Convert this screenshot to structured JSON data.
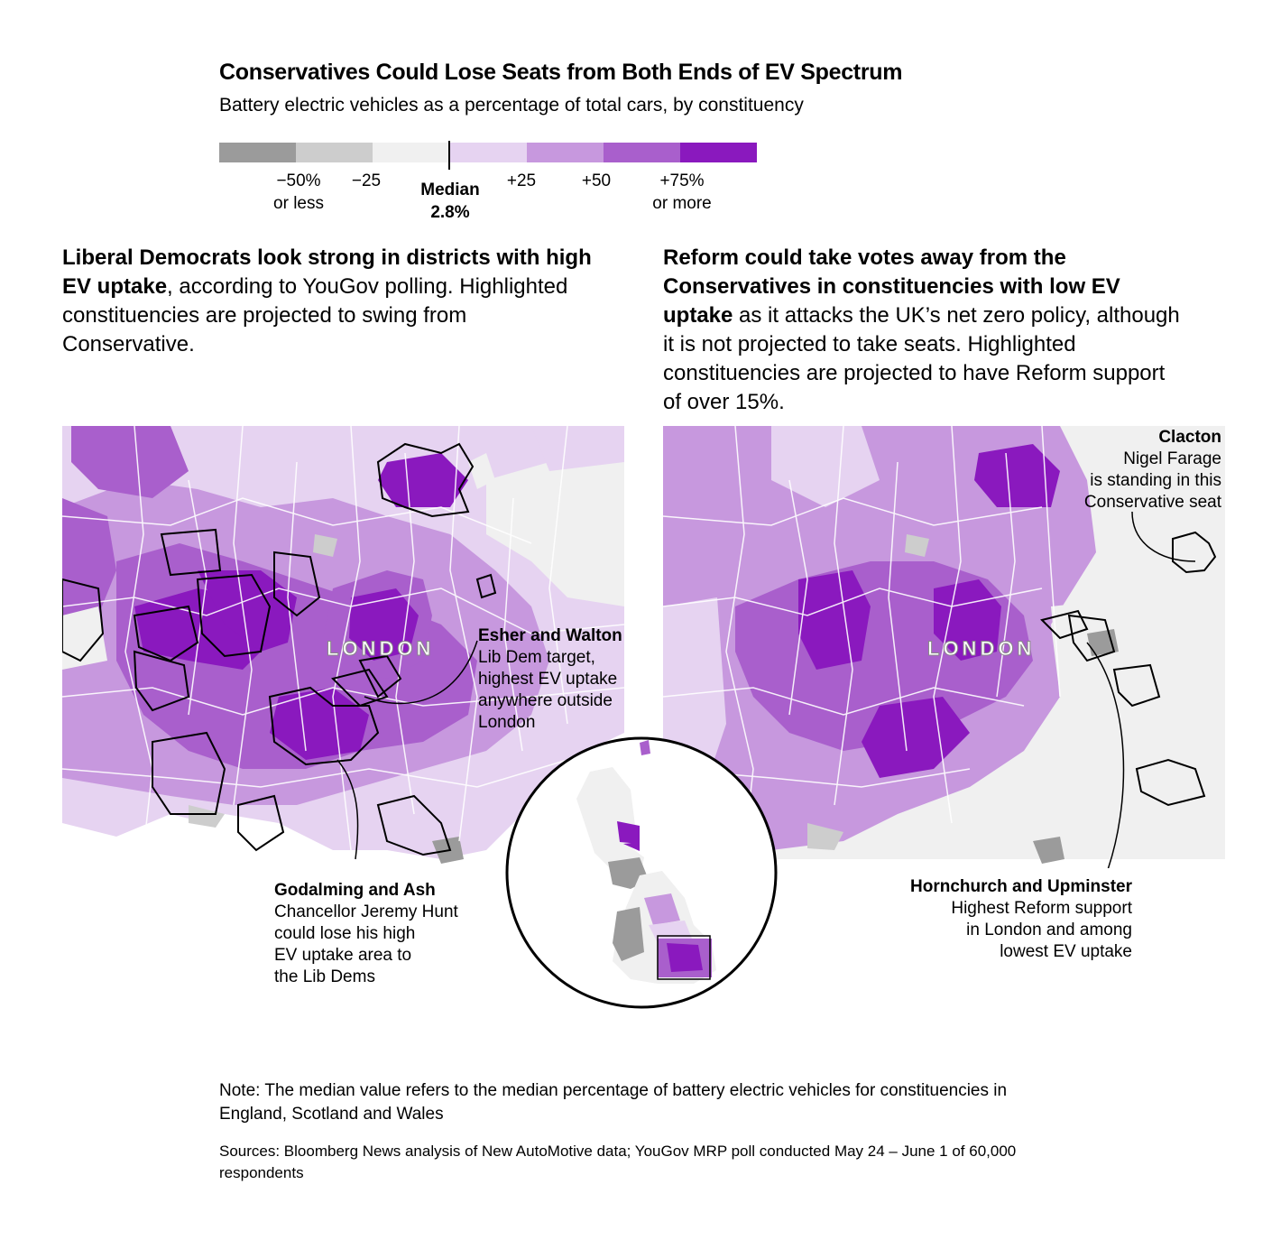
{
  "title": "Conservatives Could Lose Seats from Both Ends of EV Spectrum",
  "subtitle": "Battery electric vehicles as a percentage of total cars, by constituency",
  "legend": {
    "colors": [
      "#9b9b9b",
      "#cdcdcd",
      "#f0f0f0",
      "#e6d3f1",
      "#c798de",
      "#a95fcc",
      "#8a19be"
    ],
    "labels": [
      {
        "line1": "−50%",
        "line2": "or less"
      },
      {
        "line1": "−25",
        "line2": ""
      },
      {
        "line1": "+25",
        "line2": ""
      },
      {
        "line1": "+50",
        "line2": ""
      },
      {
        "line1": "+75%",
        "line2": "or more"
      }
    ],
    "median_label": "Median",
    "median_value": "2.8%"
  },
  "left_panel": {
    "intro_bold": "Liberal Democrats look strong in districts with high EV uptake",
    "intro_rest": ", according to YouGov polling. Highlighted constituencies are projected to swing from Conservative.",
    "map_label": "LONDON",
    "annotations": [
      {
        "title": "Esher and Walton",
        "desc": [
          "Lib Dem target,",
          "highest EV uptake",
          "anywhere outside",
          "London"
        ]
      },
      {
        "title": "Godalming and Ash",
        "desc": [
          "Chancellor Jeremy Hunt",
          "could lose his high",
          "EV uptake area to",
          "the Lib Dems"
        ]
      }
    ]
  },
  "right_panel": {
    "intro_bold": "Reform could take votes away from the Conservatives in constituencies with low EV uptake",
    "intro_rest": " as it attacks the UK’s net zero policy, although it is not projected to take seats. Highlighted constituencies are projected to have Reform support of over 15%.",
    "map_label": "LONDON",
    "annotations": [
      {
        "title": "Clacton",
        "desc": [
          "Nigel Farage",
          "is standing in this",
          "Conservative seat"
        ]
      },
      {
        "title": "Hornchurch and Upminster",
        "desc": [
          "Highest Reform support",
          "in London and among",
          "lowest EV uptake"
        ]
      }
    ]
  },
  "note": "Note: The median value refers to the median percentage of battery electric vehicles for constituencies in England, Scotland and Wales",
  "sources": "Sources: Bloomberg News analysis of New AutoMotive data; YouGov MRP poll conducted May 24 – June 1 of 60,000 respondents"
}
